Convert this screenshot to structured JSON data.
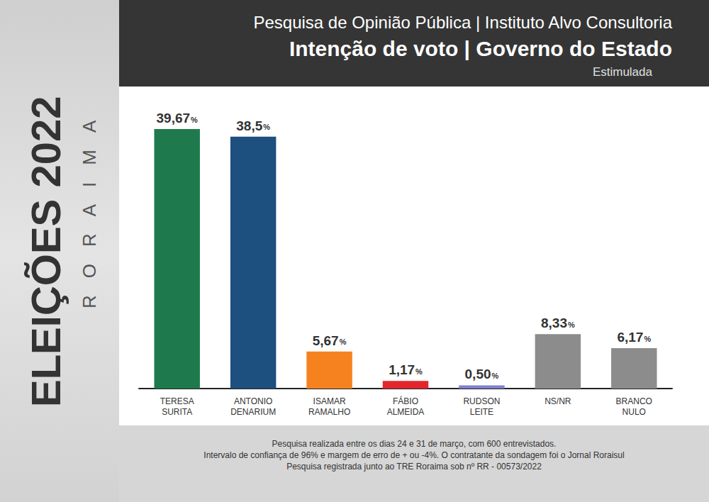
{
  "header": "Pesquisa de Opinião Pública | Instituto Alvo Consultoria",
  "side_panel": {
    "title": "ELEIÇÕES 2022",
    "subtitle": "RORAIMA"
  },
  "chart_data": {
    "type": "bar",
    "title": "Intenção de voto | Governo do Estado",
    "subtitle": "Estimulada",
    "categories": [
      "TERESA SURITA",
      "ANTONIO DENARIUM",
      "ISAMAR RAMALHO",
      "FÁBIO ALMEIDA",
      "RUDSON LEITE",
      "NS/NR",
      "BRANCO NULO"
    ],
    "values": [
      39.67,
      38.5,
      5.67,
      1.17,
      0.5,
      8.33,
      6.17
    ],
    "value_labels": [
      "39,67%",
      "38,5%",
      "5,67%",
      "1,17%",
      "0,50%",
      "8,33%",
      "6,17%"
    ],
    "colors": [
      "#1e7a4c",
      "#1d4f7f",
      "#f5821f",
      "#e3262b",
      "#7f7fcf",
      "#8c8c8c",
      "#8c8c8c"
    ],
    "data_labels": true,
    "tick_labels": "x",
    "grid": false
  },
  "footnote": [
    "Pesquisa realizada entre os dias 24 e 31 de março, com 600 entrevistados.",
    "Intervalo de confiança de 96% e margem de erro de + ou -4%. O contratante da sondagem foi o Jornal Roraisul",
    "Pesquisa registrada junto ao TRE Roraima sob nº RR - 00573/2022"
  ]
}
